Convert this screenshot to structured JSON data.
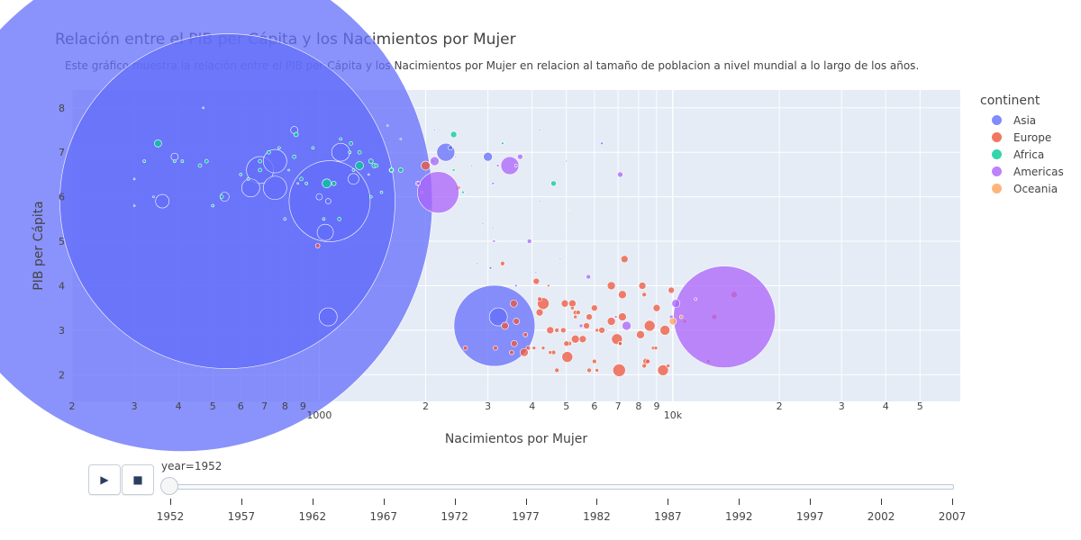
{
  "chart_data": {
    "type": "scatter",
    "title": "Relación entre el PIB per Cápita y los Nacimientos por Mujer",
    "subtitle": "Este gráfico muestra la relación entre el PIB per Cápita y los Nacimientos por Mujer en relacion al tamaño de poblacion a nivel mundial a lo largo de los años.",
    "xlabel": "Nacimientos por Mujer",
    "ylabel": "PIB per Cápita",
    "x_scale": "log",
    "xlim": [
      200,
      65000
    ],
    "ylim": [
      1.4,
      8.4
    ],
    "y_ticks": [
      "2",
      "3",
      "4",
      "5",
      "6",
      "7",
      "8"
    ],
    "x_ticks": [
      {
        "v": 200,
        "label": "2"
      },
      {
        "v": 300,
        "label": "3"
      },
      {
        "v": 400,
        "label": "4"
      },
      {
        "v": 500,
        "label": "5"
      },
      {
        "v": 600,
        "label": "6"
      },
      {
        "v": 700,
        "label": "7"
      },
      {
        "v": 800,
        "label": "8"
      },
      {
        "v": 900,
        "label": "9"
      },
      {
        "v": 1000,
        "label": "1000",
        "major": true
      },
      {
        "v": 2000,
        "label": "2"
      },
      {
        "v": 3000,
        "label": "3"
      },
      {
        "v": 4000,
        "label": "4"
      },
      {
        "v": 5000,
        "label": "5"
      },
      {
        "v": 6000,
        "label": "6"
      },
      {
        "v": 7000,
        "label": "7"
      },
      {
        "v": 8000,
        "label": "8"
      },
      {
        "v": 9000,
        "label": "9"
      },
      {
        "v": 10000,
        "label": "10k",
        "major": true
      },
      {
        "v": 20000,
        "label": "2"
      },
      {
        "v": 30000,
        "label": "3"
      },
      {
        "v": 40000,
        "label": "4"
      },
      {
        "v": 50000,
        "label": "5"
      }
    ],
    "legend_title": "continent",
    "legend_position": "right",
    "grid": true,
    "series": [
      {
        "name": "Asia",
        "color": "#636efa",
        "points": [
          [
            409,
            5.9,
            556
          ],
          [
            550,
            5.9,
            372
          ],
          [
            1070,
            5.9,
            90
          ],
          [
            2280,
            7.0,
            20
          ],
          [
            680,
            6.6,
            30
          ],
          [
            640,
            6.2,
            20
          ],
          [
            5100,
            5.7,
            1
          ],
          [
            3130,
            3.1,
            90
          ],
          [
            3210,
            3.3,
            20
          ],
          [
            1060,
            3.3,
            20
          ],
          [
            4200,
            7.5,
            2
          ],
          [
            6300,
            7.2,
            3
          ],
          [
            1380,
            6.5,
            2
          ],
          [
            540,
            6.0,
            10
          ],
          [
            850,
            7.5,
            8
          ],
          [
            1000,
            6.0,
            7
          ],
          [
            750,
            6.2,
            26
          ],
          [
            800,
            5.5,
            3
          ],
          [
            750,
            6.8,
            26
          ],
          [
            870,
            6.3,
            2
          ],
          [
            1250,
            6.4,
            12
          ],
          [
            390,
            6.9,
            8
          ],
          [
            1150,
            7.0,
            20
          ],
          [
            3000,
            6.9,
            10
          ],
          [
            1040,
            5.2,
            18
          ],
          [
            1060,
            5.9,
            6
          ],
          [
            2350,
            7.1,
            5
          ],
          [
            4100,
            4.3,
            2
          ],
          [
            3050,
            4.4,
            3
          ],
          [
            360,
            5.9,
            15
          ]
        ]
      },
      {
        "name": "Europe",
        "color": "#ef553b",
        "points": [
          [
            2000,
            6.7,
            10
          ],
          [
            1950,
            6.1,
            3
          ],
          [
            2470,
            6.2,
            5
          ],
          [
            990,
            4.9,
            5
          ],
          [
            2590,
            2.6,
            5
          ],
          [
            3150,
            2.6,
            5
          ],
          [
            3500,
            2.5,
            5
          ],
          [
            3560,
            2.7,
            7
          ],
          [
            3900,
            2.6,
            5
          ],
          [
            5300,
            3.4,
            5
          ],
          [
            4300,
            3.6,
            13
          ],
          [
            3350,
            3.1,
            8
          ],
          [
            3610,
            3.2,
            7
          ],
          [
            3550,
            3.6,
            8
          ],
          [
            3830,
            2.9,
            5
          ],
          [
            4500,
            3.0,
            8
          ],
          [
            5700,
            3.1,
            7
          ],
          [
            5560,
            2.8,
            8
          ],
          [
            4200,
            3.4,
            8
          ],
          [
            4110,
            4.1,
            7
          ],
          [
            3300,
            4.5,
            5
          ],
          [
            6000,
            3.5,
            7
          ],
          [
            5200,
            3.6,
            8
          ],
          [
            7200,
            3.8,
            9
          ],
          [
            6700,
            4.0,
            9
          ],
          [
            7300,
            4.6,
            8
          ],
          [
            8200,
            4.0,
            8
          ],
          [
            8300,
            3.8,
            5
          ],
          [
            9000,
            3.5,
            8
          ],
          [
            9900,
            3.9,
            7
          ],
          [
            13100,
            3.3,
            6
          ],
          [
            14900,
            3.8,
            7
          ],
          [
            4450,
            4.0,
            3
          ],
          [
            5800,
            3.3,
            7
          ],
          [
            4900,
            3.0,
            6
          ],
          [
            5300,
            2.8,
            9
          ],
          [
            6700,
            3.2,
            9
          ],
          [
            7200,
            3.3,
            9
          ],
          [
            8100,
            2.9,
            9
          ],
          [
            8600,
            3.1,
            12
          ],
          [
            9500,
            3.0,
            11
          ],
          [
            5030,
            2.4,
            12
          ],
          [
            7050,
            2.1,
            14
          ],
          [
            6950,
            2.8,
            12
          ],
          [
            7100,
            2.7,
            5
          ],
          [
            9380,
            2.1,
            12
          ],
          [
            8400,
            2.3,
            7
          ],
          [
            8500,
            2.3,
            5
          ],
          [
            8800,
            2.6,
            4
          ],
          [
            8950,
            2.6,
            4
          ],
          [
            8300,
            2.2,
            5
          ],
          [
            5800,
            2.1,
            5
          ],
          [
            4950,
            3.6,
            8
          ],
          [
            4300,
            2.6,
            4
          ],
          [
            4050,
            2.6,
            4
          ],
          [
            3800,
            2.5,
            9
          ],
          [
            4600,
            2.5,
            5
          ],
          [
            4700,
            2.1,
            5
          ],
          [
            10800,
            3.2,
            4
          ],
          [
            9700,
            2.2,
            4
          ],
          [
            6000,
            2.3,
            5
          ],
          [
            5200,
            3.5,
            4
          ],
          [
            5400,
            3.4,
            5
          ],
          [
            6300,
            3.0,
            7
          ],
          [
            4500,
            2.5,
            4
          ],
          [
            5100,
            2.7,
            5
          ],
          [
            5000,
            2.7,
            6
          ],
          [
            4700,
            3.0,
            5
          ],
          [
            4200,
            3.7,
            5
          ],
          [
            5300,
            3.3,
            4
          ],
          [
            6100,
            3.0,
            4
          ],
          [
            12600,
            2.3,
            4
          ],
          [
            7100,
            2.7,
            4
          ],
          [
            6100,
            2.1,
            4
          ]
        ]
      },
      {
        "name": "Africa",
        "color": "#00cc96",
        "points": [
          [
            2400,
            7.4,
            7
          ],
          [
            1400,
            6.8,
            5
          ],
          [
            1300,
            6.7,
            9
          ],
          [
            1430,
            6.7,
            5
          ],
          [
            1600,
            6.6,
            5
          ],
          [
            3300,
            7.2,
            3
          ],
          [
            4600,
            6.3,
            6
          ],
          [
            1050,
            6.3,
            10
          ],
          [
            890,
            6.4,
            4
          ],
          [
            850,
            6.9,
            4
          ],
          [
            350,
            7.2,
            8
          ],
          [
            320,
            6.8,
            3
          ],
          [
            390,
            6.8,
            3
          ],
          [
            460,
            6.7,
            4
          ],
          [
            480,
            6.8,
            4
          ],
          [
            530,
            6.0,
            4
          ],
          [
            500,
            5.8,
            3
          ],
          [
            600,
            6.5,
            3
          ],
          [
            630,
            6.4,
            3
          ],
          [
            680,
            6.6,
            4
          ],
          [
            720,
            7.0,
            4
          ],
          [
            770,
            7.1,
            3
          ],
          [
            820,
            6.6,
            2
          ],
          [
            860,
            7.4,
            5
          ],
          [
            1300,
            7.0,
            4
          ],
          [
            1150,
            7.3,
            3
          ],
          [
            1100,
            6.3,
            5
          ],
          [
            1600,
            6.6,
            4
          ],
          [
            1450,
            6.7,
            4
          ],
          [
            1700,
            6.6,
            5
          ],
          [
            1140,
            5.5,
            4
          ],
          [
            1030,
            5.5,
            3
          ],
          [
            470,
            8.0,
            2
          ],
          [
            1250,
            6.6,
            3
          ],
          [
            920,
            6.3,
            3
          ],
          [
            680,
            6.8,
            4
          ],
          [
            1500,
            6.1,
            3
          ],
          [
            1220,
            7.0,
            3
          ],
          [
            2060,
            5.7,
            2
          ],
          [
            340,
            6.0,
            2
          ],
          [
            2100,
            6.8,
            3
          ],
          [
            410,
            6.8,
            3
          ],
          [
            300,
            6.4,
            2
          ],
          [
            1230,
            7.2,
            4
          ],
          [
            2400,
            6.6,
            3
          ],
          [
            300,
            5.8,
            2
          ],
          [
            2550,
            6.1,
            3
          ],
          [
            960,
            7.1,
            3
          ],
          [
            1400,
            6.0,
            3
          ]
        ]
      },
      {
        "name": "Americas",
        "color": "#ab63fa",
        "points": [
          [
            13990,
            3.3,
            113
          ],
          [
            2170,
            6.1,
            46
          ],
          [
            3460,
            6.7,
            20
          ],
          [
            3700,
            6.9,
            6
          ],
          [
            2120,
            6.8,
            10
          ],
          [
            1900,
            6.3,
            5
          ],
          [
            1910,
            6.3,
            4
          ],
          [
            3930,
            5.0,
            5
          ],
          [
            3120,
            5.0,
            3
          ],
          [
            5770,
            4.2,
            5
          ],
          [
            7100,
            6.5,
            6
          ],
          [
            4200,
            5.9,
            2
          ],
          [
            3100,
            6.3,
            3
          ],
          [
            2900,
            5.4,
            2
          ],
          [
            3600,
            6.7,
            3
          ],
          [
            10200,
            3.6,
            9
          ],
          [
            6500,
            3.0,
            2
          ],
          [
            7400,
            3.1,
            10
          ],
          [
            1560,
            7.6,
            2
          ],
          [
            1700,
            7.3,
            2
          ],
          [
            2700,
            6.7,
            2
          ],
          [
            2430,
            6.9,
            2
          ],
          [
            3100,
            5.3,
            2
          ],
          [
            4800,
            4.6,
            2
          ],
          [
            2800,
            4.5,
            2
          ],
          [
            3600,
            4.0,
            3
          ],
          [
            3200,
            6.7,
            3
          ],
          [
            5000,
            6.8,
            2
          ],
          [
            2120,
            7.5,
            2
          ],
          [
            5500,
            3.1,
            4
          ],
          [
            6900,
            3.3,
            3
          ],
          [
            11600,
            3.7,
            3
          ],
          [
            9900,
            3.3,
            4
          ]
        ]
      },
      {
        "name": "Oceania",
        "color": "#ffa15a",
        "points": [
          [
            10000,
            3.2,
            8
          ],
          [
            10560,
            3.3,
            4
          ]
        ]
      }
    ]
  },
  "legend": {
    "title": "continent",
    "items": [
      {
        "label": "Asia",
        "color": "#636efa"
      },
      {
        "label": "Europe",
        "color": "#ef553b"
      },
      {
        "label": "Africa",
        "color": "#00cc96"
      },
      {
        "label": "Americas",
        "color": "#ab63fa"
      },
      {
        "label": "Oceania",
        "color": "#ffa15a"
      }
    ]
  },
  "controls": {
    "play_icon": "▶",
    "stop_icon": "■",
    "play_icon_name": "play-icon",
    "stop_icon_name": "stop-icon",
    "slider_label": "year=1952",
    "current_year": 1952,
    "years": [
      1952,
      1957,
      1962,
      1967,
      1972,
      1977,
      1982,
      1987,
      1992,
      1997,
      2002,
      2007
    ]
  }
}
